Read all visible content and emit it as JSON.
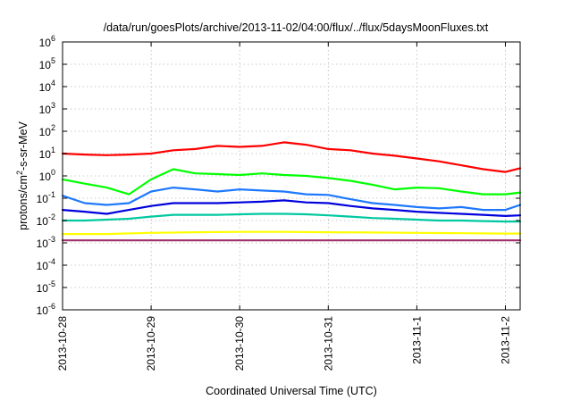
{
  "chart_data": {
    "type": "line",
    "title": "/data/run/goesPlots/archive/2013-11-02/04:00/flux/../flux/5daysMoonFluxes.txt",
    "xlabel": "Coordinated Universal Time (UTC)",
    "ylabel": {
      "base": "protons/cm",
      "sup": "2",
      "rest": "-s-sr-MeV"
    },
    "yscale": "log",
    "ylim": [
      1e-06,
      1000000.0
    ],
    "y_tick_exponents": [
      "-6",
      "-5",
      "-4",
      "-3",
      "-2",
      "-1",
      "0",
      "1",
      "2",
      "3",
      "4",
      "5",
      "6"
    ],
    "y_tick_base": "10",
    "xlim": [
      "2013-10-28 00:00",
      "2013-11-02 04:00"
    ],
    "x_ticks": [
      "2013-10-28",
      "2013-10-29",
      "2013-10-30",
      "2013-10-31",
      "2013-11-1",
      "2013-11-2"
    ],
    "grid": true,
    "series": [
      {
        "color": "#ff0000",
        "points": [
          [
            "2013-10-28 00:00",
            10
          ],
          [
            "2013-10-28 06:00",
            9
          ],
          [
            "2013-10-28 12:00",
            8.5
          ],
          [
            "2013-10-28 18:00",
            9
          ],
          [
            "2013-10-29 00:00",
            10
          ],
          [
            "2013-10-29 06:00",
            14
          ],
          [
            "2013-10-29 12:00",
            16
          ],
          [
            "2013-10-29 18:00",
            22
          ],
          [
            "2013-10-30 00:00",
            20
          ],
          [
            "2013-10-30 06:00",
            22
          ],
          [
            "2013-10-30 12:00",
            32
          ],
          [
            "2013-10-30 18:00",
            25
          ],
          [
            "2013-10-31 00:00",
            16
          ],
          [
            "2013-10-31 06:00",
            14
          ],
          [
            "2013-10-31 12:00",
            10
          ],
          [
            "2013-10-31 18:00",
            8
          ],
          [
            "2013-11-01 00:00",
            6
          ],
          [
            "2013-11-01 06:00",
            4.5
          ],
          [
            "2013-11-01 12:00",
            3
          ],
          [
            "2013-11-01 18:00",
            2
          ],
          [
            "2013-11-02 00:00",
            1.5
          ],
          [
            "2013-11-02 04:00",
            2.2
          ]
        ]
      },
      {
        "color": "#00ff00",
        "points": [
          [
            "2013-10-28 00:00",
            0.7
          ],
          [
            "2013-10-28 06:00",
            0.45
          ],
          [
            "2013-10-28 12:00",
            0.3
          ],
          [
            "2013-10-28 18:00",
            0.15
          ],
          [
            "2013-10-29 00:00",
            0.7
          ],
          [
            "2013-10-29 06:00",
            2
          ],
          [
            "2013-10-29 12:00",
            1.3
          ],
          [
            "2013-10-29 18:00",
            1.2
          ],
          [
            "2013-10-30 00:00",
            1.1
          ],
          [
            "2013-10-30 06:00",
            1.3
          ],
          [
            "2013-10-30 12:00",
            1.1
          ],
          [
            "2013-10-30 18:00",
            1.0
          ],
          [
            "2013-10-31 00:00",
            0.8
          ],
          [
            "2013-10-31 06:00",
            0.6
          ],
          [
            "2013-10-31 12:00",
            0.4
          ],
          [
            "2013-10-31 18:00",
            0.25
          ],
          [
            "2013-11-01 00:00",
            0.3
          ],
          [
            "2013-11-01 06:00",
            0.28
          ],
          [
            "2013-11-01 12:00",
            0.2
          ],
          [
            "2013-11-01 18:00",
            0.15
          ],
          [
            "2013-11-02 00:00",
            0.15
          ],
          [
            "2013-11-02 04:00",
            0.18
          ]
        ]
      },
      {
        "color": "#1e78ff",
        "points": [
          [
            "2013-10-28 00:00",
            0.13
          ],
          [
            "2013-10-28 06:00",
            0.06
          ],
          [
            "2013-10-28 12:00",
            0.05
          ],
          [
            "2013-10-28 18:00",
            0.06
          ],
          [
            "2013-10-29 00:00",
            0.2
          ],
          [
            "2013-10-29 06:00",
            0.3
          ],
          [
            "2013-10-29 12:00",
            0.25
          ],
          [
            "2013-10-29 18:00",
            0.2
          ],
          [
            "2013-10-30 00:00",
            0.25
          ],
          [
            "2013-10-30 06:00",
            0.22
          ],
          [
            "2013-10-30 12:00",
            0.2
          ],
          [
            "2013-10-30 18:00",
            0.15
          ],
          [
            "2013-10-31 00:00",
            0.14
          ],
          [
            "2013-10-31 06:00",
            0.09
          ],
          [
            "2013-10-31 12:00",
            0.06
          ],
          [
            "2013-10-31 18:00",
            0.05
          ],
          [
            "2013-11-01 00:00",
            0.04
          ],
          [
            "2013-11-01 06:00",
            0.035
          ],
          [
            "2013-11-01 12:00",
            0.04
          ],
          [
            "2013-11-01 18:00",
            0.03
          ],
          [
            "2013-11-02 00:00",
            0.03
          ],
          [
            "2013-11-02 04:00",
            0.05
          ]
        ]
      },
      {
        "color": "#0000dd",
        "points": [
          [
            "2013-10-28 00:00",
            0.03
          ],
          [
            "2013-10-28 06:00",
            0.025
          ],
          [
            "2013-10-28 12:00",
            0.02
          ],
          [
            "2013-10-28 18:00",
            0.03
          ],
          [
            "2013-10-29 00:00",
            0.045
          ],
          [
            "2013-10-29 06:00",
            0.06
          ],
          [
            "2013-10-29 12:00",
            0.06
          ],
          [
            "2013-10-29 18:00",
            0.06
          ],
          [
            "2013-10-30 00:00",
            0.065
          ],
          [
            "2013-10-30 06:00",
            0.07
          ],
          [
            "2013-10-30 12:00",
            0.08
          ],
          [
            "2013-10-30 18:00",
            0.065
          ],
          [
            "2013-10-31 00:00",
            0.06
          ],
          [
            "2013-10-31 06:00",
            0.045
          ],
          [
            "2013-10-31 12:00",
            0.035
          ],
          [
            "2013-10-31 18:00",
            0.03
          ],
          [
            "2013-11-01 00:00",
            0.025
          ],
          [
            "2013-11-01 06:00",
            0.022
          ],
          [
            "2013-11-01 12:00",
            0.02
          ],
          [
            "2013-11-01 18:00",
            0.018
          ],
          [
            "2013-11-02 00:00",
            0.016
          ],
          [
            "2013-11-02 04:00",
            0.017
          ]
        ]
      },
      {
        "color": "#00c8a0",
        "points": [
          [
            "2013-10-28 00:00",
            0.01
          ],
          [
            "2013-10-28 06:00",
            0.01
          ],
          [
            "2013-10-28 12:00",
            0.011
          ],
          [
            "2013-10-28 18:00",
            0.012
          ],
          [
            "2013-10-29 00:00",
            0.015
          ],
          [
            "2013-10-29 06:00",
            0.018
          ],
          [
            "2013-10-29 12:00",
            0.018
          ],
          [
            "2013-10-29 18:00",
            0.018
          ],
          [
            "2013-10-30 00:00",
            0.019
          ],
          [
            "2013-10-30 06:00",
            0.02
          ],
          [
            "2013-10-30 12:00",
            0.02
          ],
          [
            "2013-10-30 18:00",
            0.019
          ],
          [
            "2013-10-31 00:00",
            0.017
          ],
          [
            "2013-10-31 06:00",
            0.015
          ],
          [
            "2013-10-31 12:00",
            0.013
          ],
          [
            "2013-10-31 18:00",
            0.012
          ],
          [
            "2013-11-01 00:00",
            0.011
          ],
          [
            "2013-11-01 06:00",
            0.01
          ],
          [
            "2013-11-01 12:00",
            0.01
          ],
          [
            "2013-11-01 18:00",
            0.0095
          ],
          [
            "2013-11-02 00:00",
            0.009
          ],
          [
            "2013-11-02 04:00",
            0.009
          ]
        ]
      },
      {
        "color": "#ffff00",
        "points": [
          [
            "2013-10-28 00:00",
            0.0025
          ],
          [
            "2013-10-28 12:00",
            0.0025
          ],
          [
            "2013-10-29 00:00",
            0.0028
          ],
          [
            "2013-10-29 12:00",
            0.003
          ],
          [
            "2013-10-30 00:00",
            0.0031
          ],
          [
            "2013-10-30 12:00",
            0.0031
          ],
          [
            "2013-10-31 00:00",
            0.003
          ],
          [
            "2013-10-31 12:00",
            0.0029
          ],
          [
            "2013-11-01 00:00",
            0.0028
          ],
          [
            "2013-11-01 12:00",
            0.0027
          ],
          [
            "2013-11-02 00:00",
            0.0026
          ],
          [
            "2013-11-02 04:00",
            0.0026
          ]
        ]
      },
      {
        "color": "#a0306a",
        "points": [
          [
            "2013-10-28 00:00",
            0.0013
          ],
          [
            "2013-10-28 12:00",
            0.0013
          ],
          [
            "2013-10-29 00:00",
            0.0013
          ],
          [
            "2013-10-29 12:00",
            0.0013
          ],
          [
            "2013-10-30 00:00",
            0.0013
          ],
          [
            "2013-10-30 12:00",
            0.0013
          ],
          [
            "2013-10-31 00:00",
            0.0013
          ],
          [
            "2013-10-31 12:00",
            0.0013
          ],
          [
            "2013-11-01 00:00",
            0.0013
          ],
          [
            "2013-11-01 12:00",
            0.0013
          ],
          [
            "2013-11-02 00:00",
            0.0013
          ],
          [
            "2013-11-02 04:00",
            0.0013
          ]
        ]
      }
    ]
  }
}
